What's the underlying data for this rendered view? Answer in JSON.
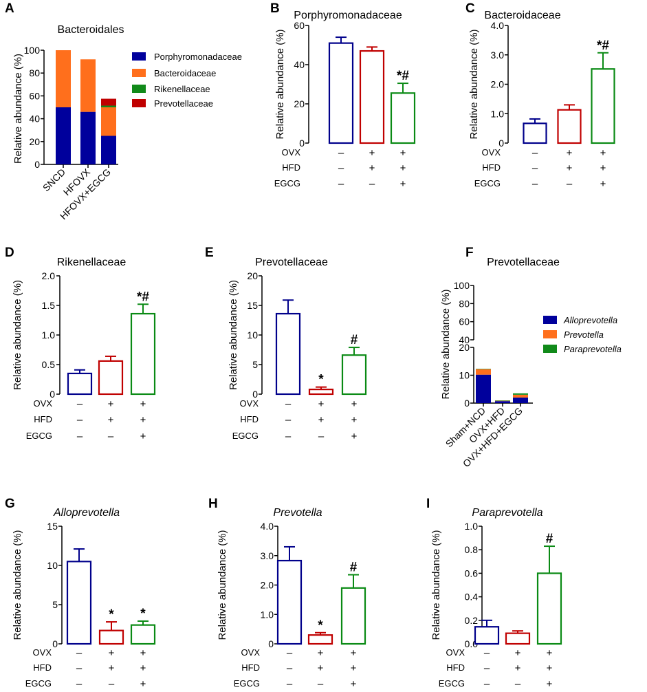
{
  "chart_data": [
    {
      "panel": "A",
      "type": "bar",
      "stacked": true,
      "title": "Bacteroidales",
      "title_italic": false,
      "ylabel": "Relative abundance (%)",
      "ylim": [
        0,
        100
      ],
      "yticks": [
        "0",
        "20",
        "40",
        "60",
        "80",
        "100"
      ],
      "categories": [
        "SNCD",
        "HFOVX",
        "HFOVX+EGCG"
      ],
      "series": [
        {
          "name": "Porphyromonadaceae",
          "color": "#00009c",
          "values": [
            50,
            46,
            25
          ]
        },
        {
          "name": "Bacteroidaceae",
          "color": "#ff6f1c",
          "values": [
            50,
            46,
            25
          ]
        },
        {
          "name": "Rikenellaceae",
          "color": "#118a1a",
          "values": [
            0,
            0,
            1.5
          ]
        },
        {
          "name": "Prevotellaceae",
          "color": "#c00000",
          "values": [
            0,
            0,
            6
          ]
        }
      ]
    },
    {
      "panel": "B",
      "type": "bar",
      "title": "Porphyromonadaceae",
      "title_italic": false,
      "ylabel": "Relative abundance (%)",
      "ylim": [
        0,
        60
      ],
      "yticks": [
        "0",
        "20",
        "40",
        "60"
      ],
      "values": [
        51,
        47,
        25.5
      ],
      "errors": [
        3,
        2,
        5
      ],
      "colors": [
        "#00008b",
        "#c00000",
        "#0a8a14"
      ],
      "annotations": [
        "",
        "",
        "*#"
      ],
      "rows": [
        {
          "label": "OVX",
          "signs": [
            "–",
            "+",
            "+"
          ]
        },
        {
          "label": "HFD",
          "signs": [
            "–",
            "+",
            "+"
          ]
        },
        {
          "label": "EGCG",
          "signs": [
            "–",
            "–",
            "+"
          ]
        }
      ]
    },
    {
      "panel": "C",
      "type": "bar",
      "title": "Bacteroidaceae",
      "title_italic": false,
      "ylabel": "Relative abundance (%)",
      "ylim": [
        0,
        4
      ],
      "yticks": [
        "0",
        "1.0",
        "2.0",
        "3.0",
        "4.0"
      ],
      "values": [
        0.67,
        1.13,
        2.52
      ],
      "errors": [
        0.15,
        0.17,
        0.55
      ],
      "colors": [
        "#00008b",
        "#c00000",
        "#0a8a14"
      ],
      "annotations": [
        "",
        "",
        "*#"
      ],
      "rows": [
        {
          "label": "OVX",
          "signs": [
            "–",
            "+",
            "+"
          ]
        },
        {
          "label": "HFD",
          "signs": [
            "–",
            "+",
            "+"
          ]
        },
        {
          "label": "EGCG",
          "signs": [
            "–",
            "–",
            "+"
          ]
        }
      ]
    },
    {
      "panel": "D",
      "type": "bar",
      "title": "Rikenellaceae",
      "title_italic": false,
      "ylabel": "Relative abundance (%)",
      "ylim": [
        0,
        2
      ],
      "yticks": [
        "0",
        "0.5",
        "1.0",
        "1.5",
        "2.0"
      ],
      "values": [
        0.35,
        0.56,
        1.36
      ],
      "errors": [
        0.06,
        0.08,
        0.16
      ],
      "colors": [
        "#00008b",
        "#c00000",
        "#0a8a14"
      ],
      "annotations": [
        "",
        "",
        "*#"
      ],
      "rows": [
        {
          "label": "OVX",
          "signs": [
            "–",
            "+",
            "+"
          ]
        },
        {
          "label": "HFD",
          "signs": [
            "–",
            "+",
            "+"
          ]
        },
        {
          "label": "EGCG",
          "signs": [
            "–",
            "–",
            "+"
          ]
        }
      ]
    },
    {
      "panel": "E",
      "type": "bar",
      "title": "Prevotellaceae",
      "title_italic": false,
      "ylabel": "Relative abundance (%)",
      "ylim": [
        0,
        20
      ],
      "yticks": [
        "0",
        "5",
        "10",
        "15",
        "20"
      ],
      "values": [
        13.6,
        0.8,
        6.6
      ],
      "errors": [
        2.3,
        0.4,
        1.3
      ],
      "colors": [
        "#00008b",
        "#c00000",
        "#0a8a14"
      ],
      "annotations": [
        "",
        "*",
        "#"
      ],
      "rows": [
        {
          "label": "OVX",
          "signs": [
            "–",
            "+",
            "+"
          ]
        },
        {
          "label": "HFD",
          "signs": [
            "–",
            "+",
            "+"
          ]
        },
        {
          "label": "EGCG",
          "signs": [
            "–",
            "–",
            "+"
          ]
        }
      ]
    },
    {
      "panel": "F",
      "type": "bar",
      "stacked": true,
      "broken_axis": true,
      "title": "Prevotellaceae",
      "title_italic": false,
      "ylabel": "Relative abundance (%)",
      "ylim_lower": [
        0,
        20
      ],
      "ylim_upper": [
        40,
        100
      ],
      "yticks": [
        "0",
        "10",
        "20",
        "40",
        "60",
        "80",
        "100"
      ],
      "categories": [
        "Sham+NCD",
        "OVX+HFD",
        "OVX+HFD+EGCG"
      ],
      "series": [
        {
          "name": "Alloprevotella",
          "color": "#00009c",
          "values": [
            10.2,
            0.7,
            2.0
          ]
        },
        {
          "name": "Prevotella",
          "color": "#ff6f1c",
          "values": [
            2.0,
            0.2,
            1.0
          ]
        },
        {
          "name": "Paraprevotella",
          "color": "#118a1a",
          "values": [
            0.1,
            0.05,
            0.5
          ]
        }
      ]
    },
    {
      "panel": "G",
      "type": "bar",
      "title": "Alloprevotella",
      "title_italic": true,
      "ylabel": "Relative abundance (%)",
      "ylim": [
        0,
        15
      ],
      "yticks": [
        "0",
        "5",
        "10",
        "15"
      ],
      "values": [
        10.5,
        1.7,
        2.4
      ],
      "errors": [
        1.6,
        1.1,
        0.5
      ],
      "colors": [
        "#00008b",
        "#c00000",
        "#0a8a14"
      ],
      "annotations": [
        "",
        "*",
        "*"
      ],
      "rows": [
        {
          "label": "OVX",
          "signs": [
            "–",
            "+",
            "+"
          ]
        },
        {
          "label": "HFD",
          "signs": [
            "–",
            "+",
            "+"
          ]
        },
        {
          "label": "EGCG",
          "signs": [
            "–",
            "–",
            "+"
          ]
        }
      ]
    },
    {
      "panel": "H",
      "type": "bar",
      "title": "Prevotella",
      "title_italic": true,
      "ylabel": "Relative abundance (%)",
      "ylim": [
        0,
        4
      ],
      "yticks": [
        "0",
        "1.0",
        "2.0",
        "3.0",
        "4.0"
      ],
      "values": [
        2.83,
        0.3,
        1.9
      ],
      "errors": [
        0.47,
        0.08,
        0.45
      ],
      "colors": [
        "#00008b",
        "#c00000",
        "#0a8a14"
      ],
      "annotations": [
        "",
        "*",
        "#"
      ],
      "rows": [
        {
          "label": "OVX",
          "signs": [
            "–",
            "+",
            "+"
          ]
        },
        {
          "label": "HFD",
          "signs": [
            "–",
            "+",
            "+"
          ]
        },
        {
          "label": "EGCG",
          "signs": [
            "–",
            "–",
            "+"
          ]
        }
      ]
    },
    {
      "panel": "I",
      "type": "bar",
      "title": "Paraprevotella",
      "title_italic": true,
      "ylabel": "Relative abundance (%)",
      "ylim": [
        0,
        1
      ],
      "yticks": [
        "0.0",
        "0.2",
        "0.4",
        "0.6",
        "0.8",
        "1.0"
      ],
      "values": [
        0.145,
        0.09,
        0.6
      ],
      "errors": [
        0.055,
        0.02,
        0.23
      ],
      "colors": [
        "#00008b",
        "#c00000",
        "#0a8a14"
      ],
      "annotations": [
        "",
        "",
        "#"
      ],
      "rows": [
        {
          "label": "OVX",
          "signs": [
            "–",
            "+",
            "+"
          ]
        },
        {
          "label": "HFD",
          "signs": [
            "–",
            "+",
            "+"
          ]
        },
        {
          "label": "EGCG",
          "signs": [
            "–",
            "–",
            "+"
          ]
        }
      ]
    }
  ]
}
